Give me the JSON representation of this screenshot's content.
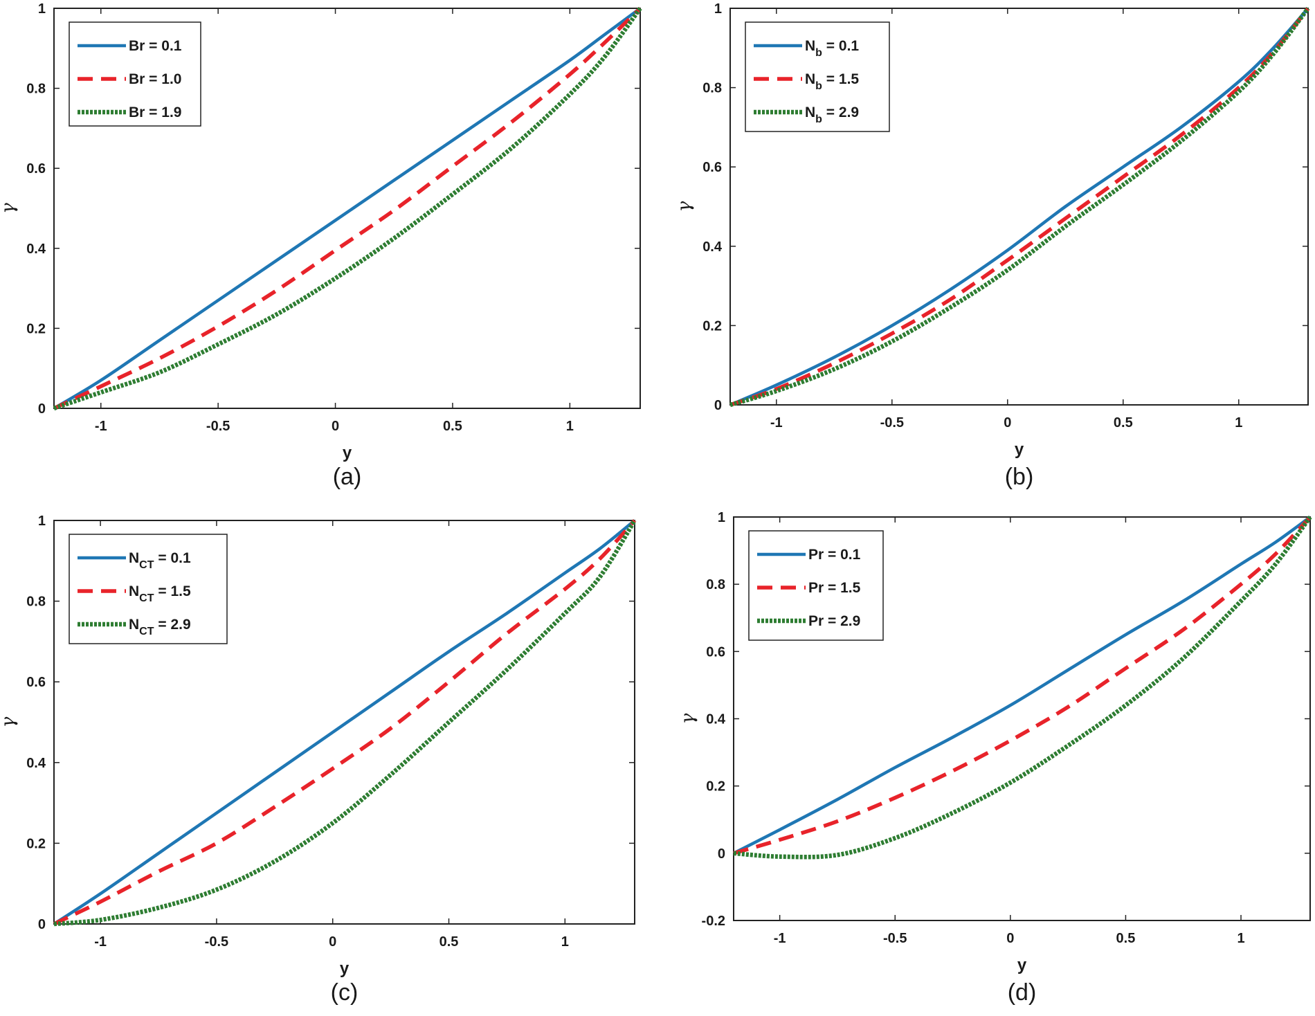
{
  "chart_data": [
    {
      "type": "line",
      "caption": "(a)",
      "xlabel": "y",
      "ylabel": "γ",
      "xlim": [
        -1.2,
        1.3
      ],
      "ylim": [
        0,
        1
      ],
      "xticks": [
        "-1",
        "-0.5",
        "0",
        "0.5",
        "1"
      ],
      "yticks": [
        "0",
        "0.2",
        "0.4",
        "0.6",
        "0.8",
        "1"
      ],
      "legend_position": "top-left",
      "x": [
        -1.2,
        -1.0,
        -0.75,
        -0.5,
        -0.25,
        0,
        0.25,
        0.5,
        0.75,
        1.0,
        1.15,
        1.3
      ],
      "series": [
        {
          "name": "Br",
          "sub": "",
          "value": "0.1",
          "style": "solid",
          "color": "#1f77b4",
          "values": [
            0,
            0.07,
            0.17,
            0.27,
            0.37,
            0.47,
            0.57,
            0.67,
            0.77,
            0.87,
            0.935,
            1.0
          ]
        },
        {
          "name": "Br",
          "sub": "",
          "value": "1.0",
          "style": "dashed",
          "color": "#e8232a",
          "values": [
            0,
            0.055,
            0.125,
            0.205,
            0.295,
            0.395,
            0.495,
            0.605,
            0.715,
            0.835,
            0.915,
            1.0
          ]
        },
        {
          "name": "Br",
          "sub": "",
          "value": "1.9",
          "style": "dotted",
          "color": "#2e7d32",
          "values": [
            0,
            0.04,
            0.09,
            0.16,
            0.235,
            0.325,
            0.425,
            0.535,
            0.65,
            0.785,
            0.88,
            1.0
          ]
        }
      ]
    },
    {
      "type": "line",
      "caption": "(b)",
      "xlabel": "y",
      "ylabel": "γ",
      "xlim": [
        -1.2,
        1.3
      ],
      "ylim": [
        0,
        1
      ],
      "xticks": [
        "-1",
        "-0.5",
        "0",
        "0.5",
        "1"
      ],
      "yticks": [
        "0",
        "0.2",
        "0.4",
        "0.6",
        "0.8",
        "1"
      ],
      "legend_position": "top-left",
      "x": [
        -1.2,
        -1.0,
        -0.75,
        -0.5,
        -0.25,
        0,
        0.25,
        0.5,
        0.75,
        1.0,
        1.15,
        1.3
      ],
      "series": [
        {
          "name": "N",
          "sub": "b",
          "value": "0.1",
          "style": "solid",
          "color": "#1f77b4",
          "values": [
            0,
            0.05,
            0.12,
            0.2,
            0.29,
            0.39,
            0.5,
            0.6,
            0.7,
            0.815,
            0.9,
            1.0
          ]
        },
        {
          "name": "N",
          "sub": "b",
          "value": "1.5",
          "style": "dashed",
          "color": "#e8232a",
          "values": [
            0,
            0.04,
            0.105,
            0.18,
            0.265,
            0.365,
            0.47,
            0.575,
            0.68,
            0.8,
            0.89,
            1.0
          ]
        },
        {
          "name": "N",
          "sub": "b",
          "value": "2.9",
          "style": "dotted",
          "color": "#2e7d32",
          "values": [
            0,
            0.035,
            0.09,
            0.16,
            0.245,
            0.34,
            0.45,
            0.555,
            0.665,
            0.79,
            0.885,
            1.0
          ]
        }
      ]
    },
    {
      "type": "line",
      "caption": "(c)",
      "xlabel": "y",
      "ylabel": "γ",
      "xlim": [
        -1.2,
        1.3
      ],
      "ylim": [
        0,
        1
      ],
      "xticks": [
        "-1",
        "-0.5",
        "0",
        "0.5",
        "1"
      ],
      "yticks": [
        "0",
        "0.2",
        "0.4",
        "0.6",
        "0.8",
        "1"
      ],
      "legend_position": "top-left",
      "x": [
        -1.2,
        -1.0,
        -0.75,
        -0.5,
        -0.25,
        0,
        0.25,
        0.5,
        0.75,
        1.0,
        1.15,
        1.3
      ],
      "series": [
        {
          "name": "N",
          "sub": "CT",
          "value": "0.1",
          "style": "solid",
          "color": "#1f77b4",
          "values": [
            0,
            0.075,
            0.175,
            0.275,
            0.375,
            0.475,
            0.575,
            0.675,
            0.77,
            0.87,
            0.93,
            1.0
          ]
        },
        {
          "name": "N",
          "sub": "CT",
          "value": "1.5",
          "style": "dashed",
          "color": "#e8232a",
          "values": [
            0,
            0.055,
            0.13,
            0.2,
            0.29,
            0.385,
            0.485,
            0.6,
            0.72,
            0.83,
            0.905,
            1.0
          ]
        },
        {
          "name": "N",
          "sub": "CT",
          "value": "2.9",
          "style": "dotted",
          "color": "#2e7d32",
          "values": [
            0,
            0.01,
            0.04,
            0.085,
            0.155,
            0.25,
            0.37,
            0.5,
            0.63,
            0.77,
            0.86,
            1.0
          ]
        }
      ]
    },
    {
      "type": "line",
      "caption": "(d)",
      "xlabel": "y",
      "ylabel": "γ",
      "xlim": [
        -1.2,
        1.3
      ],
      "ylim": [
        -0.2,
        1
      ],
      "xticks": [
        "-1",
        "-0.5",
        "0",
        "0.5",
        "1"
      ],
      "yticks": [
        "-0.2",
        "0",
        "0.2",
        "0.4",
        "0.6",
        "0.8",
        "1"
      ],
      "legend_position": "top-left",
      "x": [
        -1.2,
        -1.0,
        -0.75,
        -0.5,
        -0.25,
        0,
        0.25,
        0.5,
        0.75,
        1.0,
        1.15,
        1.3
      ],
      "series": [
        {
          "name": "Pr",
          "sub": "",
          "value": "0.1",
          "style": "solid",
          "color": "#1f77b4",
          "values": [
            0,
            0.07,
            0.16,
            0.255,
            0.345,
            0.44,
            0.545,
            0.65,
            0.75,
            0.86,
            0.925,
            1.0
          ]
        },
        {
          "name": "Pr",
          "sub": "",
          "value": "1.5",
          "style": "dashed",
          "color": "#e8232a",
          "values": [
            0,
            0.04,
            0.095,
            0.165,
            0.245,
            0.335,
            0.435,
            0.55,
            0.665,
            0.8,
            0.89,
            1.0
          ]
        },
        {
          "name": "Pr",
          "sub": "",
          "value": "2.9",
          "style": "dotted",
          "color": "#2e7d32",
          "values": [
            0,
            -0.01,
            -0.005,
            0.045,
            0.12,
            0.21,
            0.32,
            0.44,
            0.58,
            0.75,
            0.86,
            1.0
          ]
        }
      ]
    }
  ]
}
